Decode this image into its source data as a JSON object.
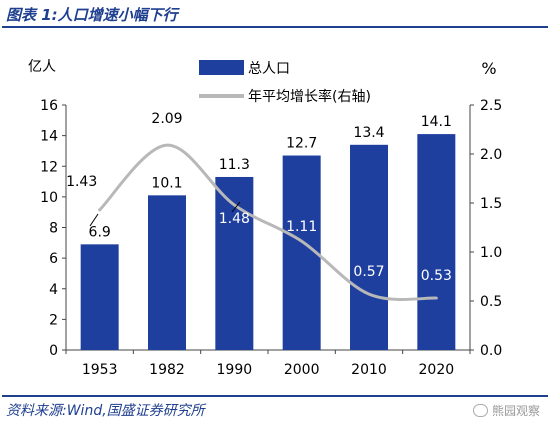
{
  "header": {
    "title": "图表 1:人口增速小幅下行"
  },
  "footer": {
    "source": "资料来源:Wind,国盛证券研究所",
    "watermark": "熊园观察"
  },
  "colors": {
    "bar": "#1f3f9f",
    "line": "#b8b8b8",
    "title": "#1f3f8f"
  },
  "chart_data": {
    "type": "bar",
    "categories": [
      "1953",
      "1982",
      "1990",
      "2000",
      "2010",
      "2020"
    ],
    "series": [
      {
        "name": "总人口",
        "type": "bar",
        "axis": "left",
        "values": [
          6.9,
          10.1,
          11.3,
          12.7,
          13.4,
          14.1
        ],
        "labels": [
          "6.9",
          "10.1",
          "11.3",
          "12.7",
          "13.4",
          "14.1"
        ]
      },
      {
        "name": "年平均增长率(右轴)",
        "type": "line",
        "axis": "right",
        "values": [
          1.43,
          2.09,
          1.48,
          1.11,
          0.57,
          0.53
        ],
        "labels": [
          "1.43",
          "2.09",
          "1.48",
          "1.11",
          "0.57",
          "0.53"
        ]
      }
    ],
    "left_axis": {
      "label": "亿人",
      "ylim": [
        0,
        16
      ],
      "ticks": [
        "0",
        "2",
        "4",
        "6",
        "8",
        "10",
        "12",
        "14",
        "16"
      ]
    },
    "right_axis": {
      "label": "%",
      "ylim": [
        0,
        2.5
      ],
      "ticks": [
        "0.0",
        "0.5",
        "1.0",
        "1.5",
        "2.0",
        "2.5"
      ]
    },
    "grid": false,
    "legend_position": "top"
  }
}
